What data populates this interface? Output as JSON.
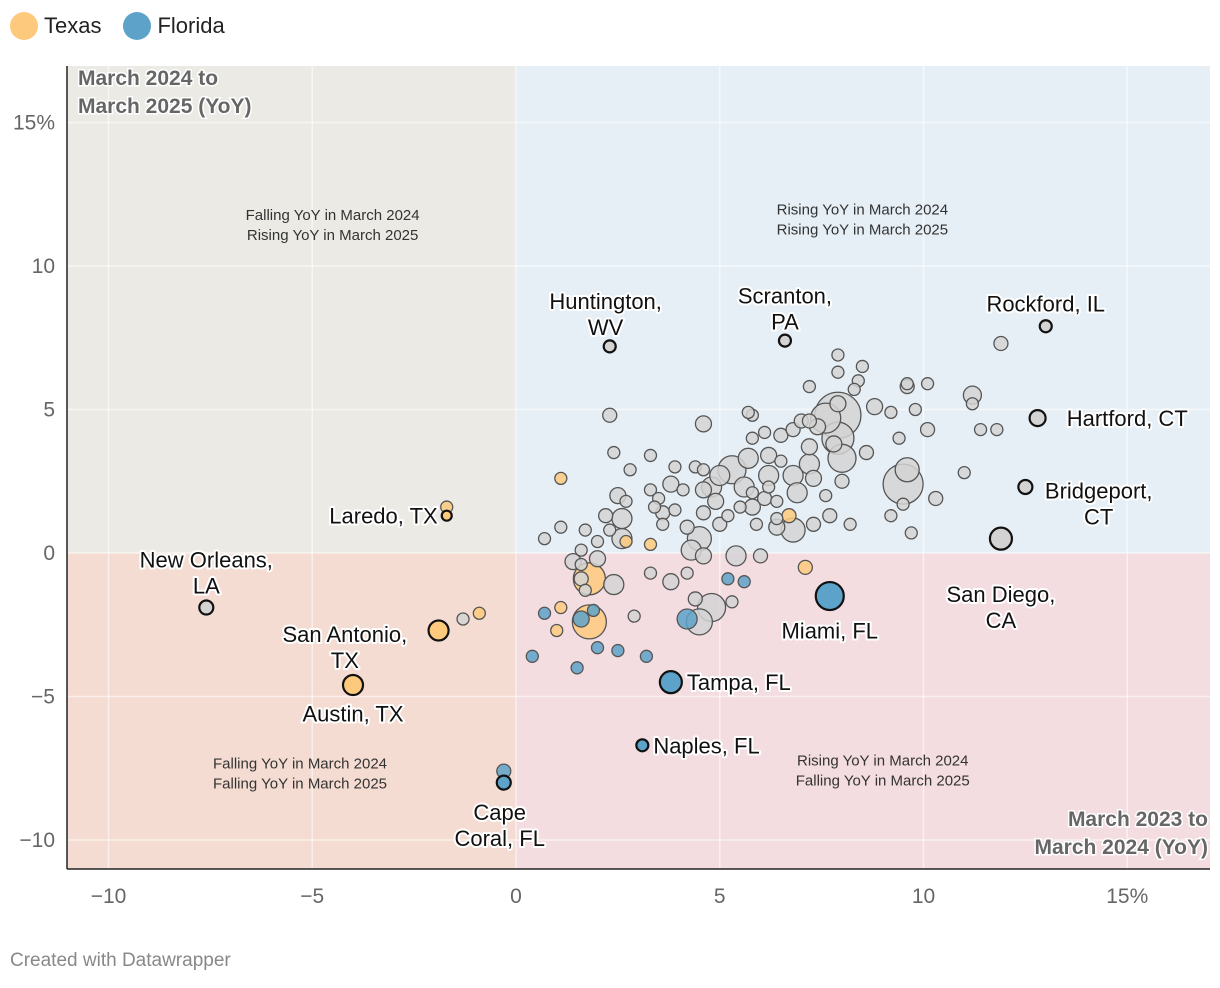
{
  "legend": {
    "texas": {
      "label": "Texas",
      "color": "#fdca7d"
    },
    "florida": {
      "label": "Florida",
      "color": "#5da2c8"
    }
  },
  "credit": "Created with Datawrapper",
  "chart_data": {
    "type": "scatter",
    "title": "",
    "xlabel": "March 2023 to March 2024 (YoY)",
    "ylabel": "March 2024 to March 2025 (YoY)",
    "xlim": [
      -11,
      17
    ],
    "ylim": [
      -11,
      17
    ],
    "x_ticks": [
      {
        "v": -10,
        "label": "−10"
      },
      {
        "v": -5,
        "label": "−5"
      },
      {
        "v": 0,
        "label": "0"
      },
      {
        "v": 5,
        "label": "5"
      },
      {
        "v": 10,
        "label": "10"
      },
      {
        "v": 15,
        "label": "15%"
      }
    ],
    "y_ticks": [
      {
        "v": 15,
        "label": "15%"
      },
      {
        "v": 10,
        "label": "10"
      },
      {
        "v": 5,
        "label": "5"
      },
      {
        "v": 0,
        "label": "0"
      },
      {
        "v": -5,
        "label": "−5"
      },
      {
        "v": -10,
        "label": "−10"
      }
    ],
    "colors": {
      "other": "#d3d3d3",
      "texas": "#fdca7d",
      "florida": "#5da2c8",
      "q_top_left": "#ebeae5",
      "q_top_right": "#e6eff6",
      "q_bottom_left": "#f5dcd2",
      "q_bottom_right": "#f4dde0"
    },
    "quadrant_labels": [
      {
        "name": "top-left",
        "lines": [
          "Falling YoY in March 2024",
          "Rising YoY in March 2025"
        ],
        "x": -4.5,
        "y": 11.6
      },
      {
        "name": "top-right",
        "lines": [
          "Rising YoY in March 2024",
          "Rising YoY in March 2025"
        ],
        "x": 8.5,
        "y": 11.8
      },
      {
        "name": "bottom-left",
        "lines": [
          "Falling YoY in March 2024",
          "Falling YoY in March 2025"
        ],
        "x": -5.3,
        "y": -7.5
      },
      {
        "name": "bottom-right",
        "lines": [
          "Rising YoY in March 2024",
          "Falling YoY in March 2025"
        ],
        "x": 9.0,
        "y": -7.4
      }
    ],
    "labeled_points": [
      {
        "label": "Rockford, IL",
        "x": 13.0,
        "y": 7.9,
        "r": 6,
        "group": "other",
        "lx": 13.0,
        "ly": 8.7
      },
      {
        "label": "Scranton, PA",
        "x": 6.6,
        "y": 7.4,
        "r": 6,
        "group": "other",
        "lx": 6.6,
        "ly": 8.7,
        "two": [
          "Scranton,",
          "PA"
        ]
      },
      {
        "label": "Huntington, WV",
        "x": 2.3,
        "y": 7.2,
        "r": 6,
        "group": "other",
        "lx": 2.2,
        "ly": 8.5,
        "two": [
          "Huntington,",
          "WV"
        ]
      },
      {
        "label": "Hartford, CT",
        "x": 12.8,
        "y": 4.7,
        "r": 8,
        "group": "other",
        "lx": 15.0,
        "ly": 4.7,
        "anchor": "middle"
      },
      {
        "label": "Bridgeport, CT",
        "x": 12.5,
        "y": 2.3,
        "r": 7,
        "group": "other",
        "lx": 14.3,
        "ly": 1.9,
        "two": [
          "Bridgeport,",
          "CT"
        ]
      },
      {
        "label": "San Diego, CA",
        "x": 11.9,
        "y": 0.5,
        "r": 11,
        "group": "other",
        "lx": 11.9,
        "ly": -1.7,
        "two": [
          "San Diego,",
          "CA"
        ]
      },
      {
        "label": "Laredo, TX",
        "x": -1.7,
        "y": 1.3,
        "r": 5,
        "group": "texas",
        "lx": -3.4,
        "ly": 1.3
      },
      {
        "label": "New Orleans, LA",
        "x": -7.6,
        "y": -1.9,
        "r": 7,
        "group": "other",
        "lx": -7.6,
        "ly": -0.5,
        "two": [
          "New Orleans,",
          "LA"
        ]
      },
      {
        "label": "San Antonio, TX",
        "x": -1.9,
        "y": -2.7,
        "r": 10,
        "group": "texas",
        "lx": -4.2,
        "ly": -3.1,
        "two": [
          "San Antonio,",
          "TX"
        ]
      },
      {
        "label": "Austin, TX",
        "x": -4.0,
        "y": -4.6,
        "r": 10,
        "group": "texas",
        "lx": -4.0,
        "ly": -5.6
      },
      {
        "label": "Miami, FL",
        "x": 7.7,
        "y": -1.5,
        "r": 14,
        "group": "florida",
        "lx": 7.7,
        "ly": -2.7
      },
      {
        "label": "Tampa, FL",
        "x": 3.8,
        "y": -4.5,
        "r": 11,
        "group": "florida",
        "lx": 5.6,
        "ly": -4.5
      },
      {
        "label": "Naples, FL",
        "x": 3.1,
        "y": -6.7,
        "r": 6,
        "group": "florida",
        "lx": 4.5,
        "ly": -6.7
      },
      {
        "label": "Cape Coral, FL",
        "x": -0.3,
        "y": -8.0,
        "r": 7,
        "group": "florida",
        "lx": -0.4,
        "ly": -9.3,
        "two": [
          "Cape",
          "Coral, FL"
        ]
      }
    ],
    "points": [
      {
        "x": -0.3,
        "y": -7.6,
        "r": 7,
        "group": "florida"
      },
      {
        "x": -1.7,
        "y": 1.6,
        "r": 6,
        "group": "texas"
      },
      {
        "x": -0.9,
        "y": -2.1,
        "r": 6,
        "group": "texas"
      },
      {
        "x": -1.3,
        "y": -2.3,
        "r": 6,
        "group": "other"
      },
      {
        "x": 1.1,
        "y": 2.6,
        "r": 6,
        "group": "texas"
      },
      {
        "x": 2.7,
        "y": 0.4,
        "r": 6,
        "group": "texas"
      },
      {
        "x": 3.3,
        "y": 0.3,
        "r": 6,
        "group": "texas"
      },
      {
        "x": 1.8,
        "y": -0.9,
        "r": 16,
        "group": "texas"
      },
      {
        "x": 1.8,
        "y": -2.4,
        "r": 17,
        "group": "texas"
      },
      {
        "x": 1.1,
        "y": -1.9,
        "r": 6,
        "group": "texas"
      },
      {
        "x": 1.0,
        "y": -2.7,
        "r": 6,
        "group": "texas"
      },
      {
        "x": 6.7,
        "y": 1.3,
        "r": 7,
        "group": "texas"
      },
      {
        "x": 7.1,
        "y": -0.5,
        "r": 7,
        "group": "texas"
      },
      {
        "x": 0.4,
        "y": -3.6,
        "r": 6,
        "group": "florida"
      },
      {
        "x": 0.7,
        "y": -2.1,
        "r": 6,
        "group": "florida"
      },
      {
        "x": 1.5,
        "y": -4.0,
        "r": 6,
        "group": "florida"
      },
      {
        "x": 1.6,
        "y": -2.3,
        "r": 8,
        "group": "florida"
      },
      {
        "x": 1.9,
        "y": -2.0,
        "r": 6,
        "group": "florida"
      },
      {
        "x": 2.0,
        "y": -3.3,
        "r": 6,
        "group": "florida"
      },
      {
        "x": 2.5,
        "y": -3.4,
        "r": 6,
        "group": "florida"
      },
      {
        "x": 3.2,
        "y": -3.6,
        "r": 6,
        "group": "florida"
      },
      {
        "x": 4.2,
        "y": -2.3,
        "r": 10,
        "group": "florida"
      },
      {
        "x": 5.2,
        "y": -0.9,
        "r": 6,
        "group": "florida"
      },
      {
        "x": 5.6,
        "y": -1.0,
        "r": 6,
        "group": "florida"
      },
      {
        "x": 0.7,
        "y": 0.5,
        "r": 6,
        "group": "other"
      },
      {
        "x": 1.6,
        "y": -0.4,
        "r": 6,
        "group": "other"
      },
      {
        "x": 1.6,
        "y": -0.9,
        "r": 7,
        "group": "other"
      },
      {
        "x": 1.4,
        "y": -0.3,
        "r": 8,
        "group": "other"
      },
      {
        "x": 2.0,
        "y": -0.2,
        "r": 8,
        "group": "other"
      },
      {
        "x": 2.4,
        "y": -1.1,
        "r": 10,
        "group": "other"
      },
      {
        "x": 1.7,
        "y": -1.3,
        "r": 6,
        "group": "other"
      },
      {
        "x": 1.6,
        "y": 0.1,
        "r": 6,
        "group": "other"
      },
      {
        "x": 1.1,
        "y": 0.9,
        "r": 6,
        "group": "other"
      },
      {
        "x": 1.7,
        "y": 0.8,
        "r": 6,
        "group": "other"
      },
      {
        "x": 2.2,
        "y": 1.3,
        "r": 7,
        "group": "other"
      },
      {
        "x": 2.3,
        "y": 0.8,
        "r": 6,
        "group": "other"
      },
      {
        "x": 2.6,
        "y": 0.5,
        "r": 10,
        "group": "other"
      },
      {
        "x": 2.6,
        "y": 1.2,
        "r": 10,
        "group": "other"
      },
      {
        "x": 2.5,
        "y": 2.0,
        "r": 8,
        "group": "other"
      },
      {
        "x": 2.7,
        "y": 1.8,
        "r": 6,
        "group": "other"
      },
      {
        "x": 2.8,
        "y": 2.9,
        "r": 6,
        "group": "other"
      },
      {
        "x": 3.3,
        "y": 3.4,
        "r": 6,
        "group": "other"
      },
      {
        "x": 3.3,
        "y": 2.2,
        "r": 6,
        "group": "other"
      },
      {
        "x": 3.5,
        "y": 1.9,
        "r": 6,
        "group": "other"
      },
      {
        "x": 3.6,
        "y": 1.4,
        "r": 7,
        "group": "other"
      },
      {
        "x": 3.6,
        "y": 1.0,
        "r": 6,
        "group": "other"
      },
      {
        "x": 3.9,
        "y": 1.5,
        "r": 6,
        "group": "other"
      },
      {
        "x": 3.8,
        "y": 2.4,
        "r": 8,
        "group": "other"
      },
      {
        "x": 4.1,
        "y": 2.2,
        "r": 6,
        "group": "other"
      },
      {
        "x": 4.4,
        "y": 3.0,
        "r": 6,
        "group": "other"
      },
      {
        "x": 4.6,
        "y": 2.9,
        "r": 6,
        "group": "other"
      },
      {
        "x": 4.6,
        "y": 2.2,
        "r": 8,
        "group": "other"
      },
      {
        "x": 4.6,
        "y": 1.4,
        "r": 7,
        "group": "other"
      },
      {
        "x": 4.5,
        "y": 0.5,
        "r": 12,
        "group": "other"
      },
      {
        "x": 4.3,
        "y": 0.1,
        "r": 10,
        "group": "other"
      },
      {
        "x": 4.6,
        "y": -0.1,
        "r": 8,
        "group": "other"
      },
      {
        "x": 4.8,
        "y": 2.3,
        "r": 10,
        "group": "other"
      },
      {
        "x": 4.9,
        "y": 1.8,
        "r": 8,
        "group": "other"
      },
      {
        "x": 5.0,
        "y": 1.0,
        "r": 7,
        "group": "other"
      },
      {
        "x": 5.0,
        "y": 2.7,
        "r": 10,
        "group": "other"
      },
      {
        "x": 5.3,
        "y": 2.9,
        "r": 14,
        "group": "other"
      },
      {
        "x": 5.6,
        "y": 2.3,
        "r": 10,
        "group": "other"
      },
      {
        "x": 5.7,
        "y": 3.3,
        "r": 10,
        "group": "other"
      },
      {
        "x": 5.5,
        "y": 1.6,
        "r": 6,
        "group": "other"
      },
      {
        "x": 5.8,
        "y": 1.6,
        "r": 8,
        "group": "other"
      },
      {
        "x": 5.9,
        "y": 1.0,
        "r": 6,
        "group": "other"
      },
      {
        "x": 6.1,
        "y": 1.9,
        "r": 7,
        "group": "other"
      },
      {
        "x": 6.2,
        "y": 2.7,
        "r": 10,
        "group": "other"
      },
      {
        "x": 6.2,
        "y": 3.4,
        "r": 8,
        "group": "other"
      },
      {
        "x": 6.1,
        "y": 4.2,
        "r": 6,
        "group": "other"
      },
      {
        "x": 5.8,
        "y": 4.0,
        "r": 6,
        "group": "other"
      },
      {
        "x": 5.8,
        "y": 4.8,
        "r": 6,
        "group": "other"
      },
      {
        "x": 6.5,
        "y": 4.1,
        "r": 7,
        "group": "other"
      },
      {
        "x": 6.5,
        "y": 3.2,
        "r": 6,
        "group": "other"
      },
      {
        "x": 6.4,
        "y": 1.8,
        "r": 6,
        "group": "other"
      },
      {
        "x": 6.4,
        "y": 0.9,
        "r": 8,
        "group": "other"
      },
      {
        "x": 6.8,
        "y": 4.3,
        "r": 7,
        "group": "other"
      },
      {
        "x": 6.8,
        "y": 2.7,
        "r": 10,
        "group": "other"
      },
      {
        "x": 6.9,
        "y": 2.1,
        "r": 10,
        "group": "other"
      },
      {
        "x": 6.8,
        "y": 0.8,
        "r": 12,
        "group": "other"
      },
      {
        "x": 7.0,
        "y": 4.6,
        "r": 7,
        "group": "other"
      },
      {
        "x": 7.2,
        "y": 4.6,
        "r": 7,
        "group": "other"
      },
      {
        "x": 7.2,
        "y": 3.7,
        "r": 8,
        "group": "other"
      },
      {
        "x": 7.2,
        "y": 3.1,
        "r": 10,
        "group": "other"
      },
      {
        "x": 7.3,
        "y": 2.6,
        "r": 8,
        "group": "other"
      },
      {
        "x": 7.3,
        "y": 1.0,
        "r": 7,
        "group": "other"
      },
      {
        "x": 7.2,
        "y": 5.8,
        "r": 6,
        "group": "other"
      },
      {
        "x": 7.4,
        "y": 4.4,
        "r": 8,
        "group": "other"
      },
      {
        "x": 7.6,
        "y": 4.7,
        "r": 15,
        "group": "other"
      },
      {
        "x": 7.9,
        "y": 4.8,
        "r": 23,
        "group": "other"
      },
      {
        "x": 7.9,
        "y": 4.0,
        "r": 16,
        "group": "other"
      },
      {
        "x": 8.0,
        "y": 3.3,
        "r": 14,
        "group": "other"
      },
      {
        "x": 7.8,
        "y": 3.8,
        "r": 8,
        "group": "other"
      },
      {
        "x": 7.9,
        "y": 5.2,
        "r": 8,
        "group": "other"
      },
      {
        "x": 7.9,
        "y": 6.3,
        "r": 6,
        "group": "other"
      },
      {
        "x": 7.9,
        "y": 6.9,
        "r": 6,
        "group": "other"
      },
      {
        "x": 8.4,
        "y": 6.0,
        "r": 6,
        "group": "other"
      },
      {
        "x": 8.3,
        "y": 5.7,
        "r": 6,
        "group": "other"
      },
      {
        "x": 8.5,
        "y": 6.5,
        "r": 6,
        "group": "other"
      },
      {
        "x": 8.6,
        "y": 3.5,
        "r": 7,
        "group": "other"
      },
      {
        "x": 8.8,
        "y": 5.1,
        "r": 8,
        "group": "other"
      },
      {
        "x": 9.2,
        "y": 4.9,
        "r": 6,
        "group": "other"
      },
      {
        "x": 9.4,
        "y": 4.0,
        "r": 6,
        "group": "other"
      },
      {
        "x": 9.6,
        "y": 5.8,
        "r": 7,
        "group": "other"
      },
      {
        "x": 9.6,
        "y": 5.9,
        "r": 6,
        "group": "other"
      },
      {
        "x": 9.5,
        "y": 2.4,
        "r": 20,
        "group": "other"
      },
      {
        "x": 9.6,
        "y": 2.9,
        "r": 12,
        "group": "other"
      },
      {
        "x": 9.5,
        "y": 1.7,
        "r": 6,
        "group": "other"
      },
      {
        "x": 9.2,
        "y": 1.3,
        "r": 6,
        "group": "other"
      },
      {
        "x": 9.7,
        "y": 0.7,
        "r": 6,
        "group": "other"
      },
      {
        "x": 10.1,
        "y": 4.3,
        "r": 7,
        "group": "other"
      },
      {
        "x": 9.8,
        "y": 5.0,
        "r": 6,
        "group": "other"
      },
      {
        "x": 10.1,
        "y": 5.9,
        "r": 6,
        "group": "other"
      },
      {
        "x": 10.3,
        "y": 1.9,
        "r": 7,
        "group": "other"
      },
      {
        "x": 11.0,
        "y": 2.8,
        "r": 6,
        "group": "other"
      },
      {
        "x": 11.2,
        "y": 5.2,
        "r": 6,
        "group": "other"
      },
      {
        "x": 11.2,
        "y": 5.5,
        "r": 9,
        "group": "other"
      },
      {
        "x": 11.4,
        "y": 4.3,
        "r": 6,
        "group": "other"
      },
      {
        "x": 11.8,
        "y": 4.3,
        "r": 6,
        "group": "other"
      },
      {
        "x": 11.9,
        "y": 7.3,
        "r": 7,
        "group": "other"
      },
      {
        "x": 8.2,
        "y": 1.0,
        "r": 6,
        "group": "other"
      },
      {
        "x": 7.7,
        "y": 1.3,
        "r": 7,
        "group": "other"
      },
      {
        "x": 6.4,
        "y": 1.2,
        "r": 6,
        "group": "other"
      },
      {
        "x": 5.8,
        "y": 2.1,
        "r": 6,
        "group": "other"
      },
      {
        "x": 6.0,
        "y": -0.1,
        "r": 7,
        "group": "other"
      },
      {
        "x": 5.4,
        "y": -0.1,
        "r": 10,
        "group": "other"
      },
      {
        "x": 5.3,
        "y": -1.7,
        "r": 6,
        "group": "other"
      },
      {
        "x": 4.8,
        "y": -1.9,
        "r": 14,
        "group": "other"
      },
      {
        "x": 4.5,
        "y": -2.4,
        "r": 13,
        "group": "other"
      },
      {
        "x": 4.4,
        "y": -1.6,
        "r": 7,
        "group": "other"
      },
      {
        "x": 4.2,
        "y": -0.7,
        "r": 6,
        "group": "other"
      },
      {
        "x": 3.8,
        "y": -1.0,
        "r": 8,
        "group": "other"
      },
      {
        "x": 3.3,
        "y": -0.7,
        "r": 6,
        "group": "other"
      },
      {
        "x": 2.9,
        "y": -2.2,
        "r": 6,
        "group": "other"
      },
      {
        "x": 2.3,
        "y": 4.8,
        "r": 7,
        "group": "other"
      },
      {
        "x": 2.4,
        "y": 3.5,
        "r": 6,
        "group": "other"
      },
      {
        "x": 4.6,
        "y": 4.5,
        "r": 8,
        "group": "other"
      },
      {
        "x": 5.7,
        "y": 4.9,
        "r": 6,
        "group": "other"
      },
      {
        "x": 6.2,
        "y": 2.3,
        "r": 6,
        "group": "other"
      },
      {
        "x": 3.9,
        "y": 3.0,
        "r": 6,
        "group": "other"
      },
      {
        "x": 3.4,
        "y": 1.6,
        "r": 6,
        "group": "other"
      },
      {
        "x": 2.0,
        "y": 0.4,
        "r": 6,
        "group": "other"
      },
      {
        "x": 4.2,
        "y": 0.9,
        "r": 7,
        "group": "other"
      },
      {
        "x": 5.2,
        "y": 1.3,
        "r": 6,
        "group": "other"
      },
      {
        "x": 7.6,
        "y": 2.0,
        "r": 6,
        "group": "other"
      },
      {
        "x": 8.0,
        "y": 2.5,
        "r": 7,
        "group": "other"
      }
    ],
    "corner_labels": {
      "y_axis": [
        "March 2024 to",
        "March 2025 (YoY)"
      ],
      "x_axis": [
        "March 2023 to",
        "March 2024 (YoY)"
      ]
    }
  }
}
